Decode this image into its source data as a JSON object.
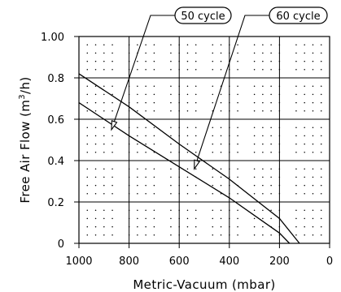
{
  "chart_data": {
    "type": "line",
    "title": "",
    "xlabel": "Metric-Vacuum (mbar)",
    "ylabel_prefix": "Free Air Flow (m",
    "ylabel_sup": "3",
    "ylabel_suffix": "/h)",
    "xlim": [
      1000,
      0
    ],
    "ylim": [
      0,
      1.0
    ],
    "x_reversed": true,
    "grid": true,
    "xticks": [
      1000,
      800,
      600,
      400,
      200,
      0
    ],
    "xtick_labels": [
      "1000",
      "800",
      "600",
      "400",
      "200",
      "0"
    ],
    "yticks": [
      0,
      0.2,
      0.4,
      0.6,
      0.8,
      1.0
    ],
    "ytick_labels": [
      "0",
      "0.2",
      "0.4",
      "0.6",
      "0.8",
      "1.00"
    ],
    "series": [
      {
        "name": "60 cycle",
        "x": [
          1000,
          800,
          600,
          400,
          200,
          120
        ],
        "y": [
          0.82,
          0.66,
          0.48,
          0.31,
          0.12,
          0.0
        ],
        "pointer_at": [
          540,
          0.36
        ]
      },
      {
        "name": "50 cycle",
        "x": [
          1000,
          800,
          600,
          400,
          200,
          160
        ],
        "y": [
          0.68,
          0.52,
          0.37,
          0.22,
          0.05,
          0.0
        ],
        "pointer_at": [
          870,
          0.55
        ]
      }
    ]
  }
}
